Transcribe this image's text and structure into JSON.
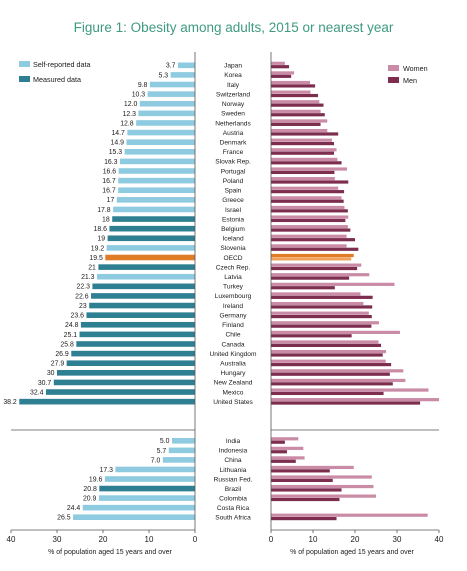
{
  "title": "Figure 1: Obesity among adults, 2015 or nearest year",
  "chart_data": {
    "type": "bar",
    "title": "Figure 1: Obesity among adults, 2015 or nearest year",
    "colors": {
      "self_reported": "#8fcbe0",
      "measured": "#2f7f93",
      "oecd": "#e07b26",
      "women": "#c98ba6",
      "men": "#7d2e4f"
    },
    "left_panel": {
      "legend": [
        "Self-reported data",
        "Measured data"
      ],
      "legend_placement": "top-left",
      "xlim": [
        40,
        0
      ],
      "xticks": [
        "40",
        "30",
        "20",
        "10",
        "0"
      ],
      "xlabel": "% of population aged 15 years and over"
    },
    "right_panel": {
      "legend": [
        "Women",
        "Men"
      ],
      "legend_placement": "top-right",
      "xlim": [
        0,
        40
      ],
      "xticks": [
        "0",
        "10",
        "20",
        "30",
        "40"
      ],
      "xlabel": "% of population aged 15 years and over"
    },
    "countries": [
      {
        "name": "Japan",
        "total": "3.7",
        "type": "self",
        "women": 3.3,
        "men": 4.3
      },
      {
        "name": "Korea",
        "total": "5.3",
        "type": "self",
        "women": 5.5,
        "men": 4.8
      },
      {
        "name": "Italy",
        "total": "9.8",
        "type": "self",
        "women": 9.3,
        "men": 10.5
      },
      {
        "name": "Switzerland",
        "total": "10.3",
        "type": "self",
        "women": 9.4,
        "men": 11.2
      },
      {
        "name": "Norway",
        "total": "12.0",
        "type": "self",
        "women": 11.5,
        "men": 12.5
      },
      {
        "name": "Sweden",
        "total": "12.3",
        "type": "self",
        "women": 11.8,
        "men": 12.8
      },
      {
        "name": "Netherlands",
        "total": "12.8",
        "type": "self",
        "women": 13.4,
        "men": 11.8
      },
      {
        "name": "Austria",
        "total": "14.7",
        "type": "self",
        "women": 13.4,
        "men": 16.0
      },
      {
        "name": "Denmark",
        "total": "14.9",
        "type": "self",
        "women": 14.5,
        "men": 15.0
      },
      {
        "name": "France",
        "total": "15.3",
        "type": "self",
        "women": 15.6,
        "men": 15.0
      },
      {
        "name": "Slovak Rep.",
        "total": "16.3",
        "type": "self",
        "women": 15.8,
        "men": 16.8
      },
      {
        "name": "Portugal",
        "total": "16.6",
        "type": "self",
        "women": 18.1,
        "men": 15.1
      },
      {
        "name": "Poland",
        "total": "16.7",
        "type": "self",
        "women": 15.2,
        "men": 18.4
      },
      {
        "name": "Spain",
        "total": "16.7",
        "type": "self",
        "women": 16.0,
        "men": 17.4
      },
      {
        "name": "Greece",
        "total": "17",
        "type": "self",
        "women": 16.8,
        "men": 17.3
      },
      {
        "name": "Israel",
        "total": "17.8",
        "type": "self",
        "women": 17.5,
        "men": 18.3
      },
      {
        "name": "Estonia",
        "total": "18",
        "type": "measured",
        "women": 18.4,
        "men": 17.7
      },
      {
        "name": "Belgium",
        "total": "18.6",
        "type": "measured",
        "women": 18.3,
        "men": 18.9
      },
      {
        "name": "Iceland",
        "total": "19",
        "type": "measured",
        "women": 18.0,
        "men": 20.0
      },
      {
        "name": "Slovenia",
        "total": "19.2",
        "type": "self",
        "women": 18.0,
        "men": 20.8
      },
      {
        "name": "OECD",
        "total": "19.5",
        "type": "oecd",
        "women": 19.7,
        "men": 19.1
      },
      {
        "name": "Czech Rep.",
        "total": "21",
        "type": "measured",
        "women": 21.5,
        "men": 20.5
      },
      {
        "name": "Latvia",
        "total": "21.3",
        "type": "self",
        "women": 23.4,
        "men": 18.6
      },
      {
        "name": "Turkey",
        "total": "22.3",
        "type": "measured",
        "women": 29.4,
        "men": 15.2
      },
      {
        "name": "Luxembourg",
        "total": "22.6",
        "type": "measured",
        "women": 21.3,
        "men": 24.2
      },
      {
        "name": "Ireland",
        "total": "23",
        "type": "measured",
        "women": 22.0,
        "men": 24.1
      },
      {
        "name": "Germany",
        "total": "23.6",
        "type": "measured",
        "women": 23.3,
        "men": 24.0
      },
      {
        "name": "Finland",
        "total": "24.8",
        "type": "measured",
        "women": 25.7,
        "men": 23.9
      },
      {
        "name": "Chile",
        "total": "25.1",
        "type": "measured",
        "women": 30.7,
        "men": 19.2
      },
      {
        "name": "Canada",
        "total": "25.8",
        "type": "measured",
        "women": 25.6,
        "men": 26.2
      },
      {
        "name": "United Kingdom",
        "total": "26.9",
        "type": "measured",
        "women": 27.4,
        "men": 26.6
      },
      {
        "name": "Australia",
        "total": "27.9",
        "type": "measured",
        "women": 27.3,
        "men": 28.6
      },
      {
        "name": "Hungary",
        "total": "30",
        "type": "measured",
        "women": 31.5,
        "men": 28.3
      },
      {
        "name": "New Zealand",
        "total": "30.7",
        "type": "measured",
        "women": 32.0,
        "men": 29.0
      },
      {
        "name": "Mexico",
        "total": "32.4",
        "type": "measured",
        "women": 37.5,
        "men": 26.8
      },
      {
        "name": "United States",
        "total": "38.2",
        "type": "measured",
        "women": 40.0,
        "men": 35.5
      }
    ],
    "partners": [
      {
        "name": "India",
        "total": "5.0",
        "type": "self",
        "women": 6.5,
        "men": 3.3
      },
      {
        "name": "Indonesia",
        "total": "5.7",
        "type": "self",
        "women": 7.7,
        "men": 3.8
      },
      {
        "name": "China",
        "total": "7.0",
        "type": "self",
        "women": 8.0,
        "men": 5.9
      },
      {
        "name": "Lithuania",
        "total": "17.3",
        "type": "self",
        "women": 19.7,
        "men": 14.0
      },
      {
        "name": "Russian Fed.",
        "total": "19.6",
        "type": "self",
        "women": 24.0,
        "men": 14.7
      },
      {
        "name": "Brazil",
        "total": "20.8",
        "type": "measured",
        "women": 24.4,
        "men": 16.8
      },
      {
        "name": "Colombia",
        "total": "20.9",
        "type": "self",
        "women": 25.0,
        "men": 16.3
      },
      {
        "name": "Costa Rica",
        "total": "24.4",
        "type": "self",
        "women": null,
        "men": null
      },
      {
        "name": "South Africa",
        "total": "26.5",
        "type": "self",
        "women": 37.3,
        "men": 15.6
      }
    ]
  }
}
